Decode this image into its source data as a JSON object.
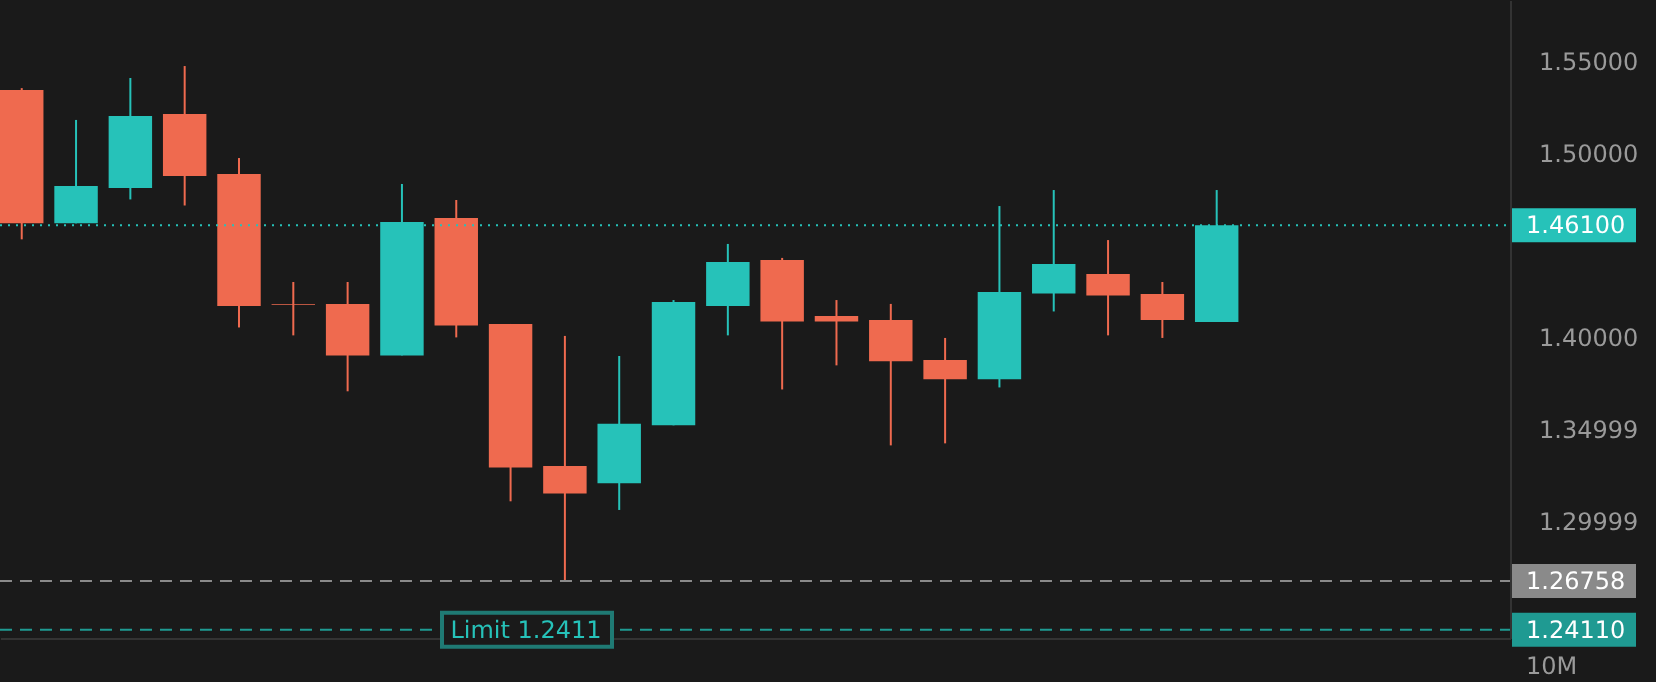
{
  "chart_data": {
    "type": "candlestick",
    "categories": [
      null,
      null,
      null,
      null,
      null,
      null,
      null,
      null,
      null,
      null,
      null,
      null,
      null,
      null,
      null,
      null,
      null,
      null,
      null,
      null,
      null,
      null,
      null,
      null,
      null,
      null,
      null,
      null
    ],
    "ohlc": [
      [
        1.5345,
        1.5355,
        1.4533,
        1.462
      ],
      [
        1.462,
        1.5182,
        1.462,
        1.4823
      ],
      [
        1.4812,
        1.541,
        1.475,
        1.5203
      ],
      [
        1.5214,
        1.5475,
        1.4717,
        1.4877
      ],
      [
        1.4888,
        1.4975,
        1.4054,
        1.4171
      ],
      [
        1.418,
        1.4301,
        1.4011,
        1.4176
      ],
      [
        1.4182,
        1.4301,
        1.3707,
        1.3902
      ],
      [
        1.3902,
        1.4834,
        1.3902,
        1.4627
      ],
      [
        1.4649,
        1.4747,
        1.4,
        1.4065
      ],
      [
        1.4073,
        1.4073,
        1.3109,
        1.3293
      ],
      [
        1.3301,
        1.4008,
        1.2676,
        1.3152
      ],
      [
        1.3207,
        1.3899,
        1.3062,
        1.353
      ],
      [
        1.3522,
        1.4203,
        1.3522,
        1.4192
      ],
      [
        1.4171,
        1.4508,
        1.4011,
        1.441
      ],
      [
        1.4421,
        1.4432,
        1.3717,
        1.4087
      ],
      [
        1.4116,
        1.4203,
        1.3848,
        1.4087
      ],
      [
        1.4095,
        1.4182,
        1.3413,
        1.387
      ],
      [
        1.3877,
        1.3997,
        1.3424,
        1.3772
      ],
      [
        1.3772,
        1.4714,
        1.3728,
        1.4247
      ],
      [
        1.4239,
        1.4801,
        1.4141,
        1.4399
      ],
      [
        1.4345,
        1.4529,
        1.4011,
        1.4228
      ],
      [
        1.4236,
        1.4301,
        1.3997,
        1.4095
      ],
      [
        1.4084,
        1.4801,
        1.4084,
        1.461
      ],
      null,
      null,
      null,
      null,
      null
    ],
    "colors": [
      "#ef6a4f",
      "#26c2b9",
      "#26c2b9",
      "#ef6a4f",
      "#ef6a4f",
      "#ef6a4f",
      "#ef6a4f",
      "#26c2b9",
      "#ef6a4f",
      "#ef6a4f",
      "#ef6a4f",
      "#26c2b9",
      "#26c2b9",
      "#26c2b9",
      "#ef6a4f",
      "#ef6a4f",
      "#ef6a4f",
      "#ef6a4f",
      "#26c2b9",
      "#26c2b9",
      "#ef6a4f",
      "#ef6a4f",
      "#26c2b9",
      null,
      null,
      null,
      null,
      null
    ],
    "ylim": [
      1.2366,
      1.5834
    ],
    "yticks": [
      {
        "value": 1.55,
        "label": "1.55000"
      },
      {
        "value": 1.5,
        "label": "1.50000"
      },
      {
        "value": 1.4,
        "label": "1.40000"
      },
      1.34999,
      1.29999
    ],
    "tick_labels": "y",
    "grid": false,
    "ref_lines": [
      {
        "axis": "y",
        "value": 1.461,
        "label": "1.46100",
        "color": "#26c2b9",
        "line_style": "dotted"
      },
      {
        "axis": "y",
        "value": 1.26758,
        "label": "1.26758",
        "color": "#8a8a8a",
        "line_style": "dashed"
      },
      {
        "axis": "y",
        "value": 1.2411,
        "label": "1.24110",
        "color": "#1f9a92",
        "line_style": "dashed"
      }
    ],
    "annotations": [
      {
        "text": "Limit 1.2411",
        "y": 1.2411
      },
      "10M"
    ]
  }
}
